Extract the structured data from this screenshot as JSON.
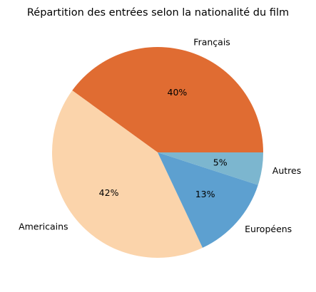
{
  "chart_data": {
    "type": "pie",
    "title": "Répartition des entrées selon la nationalité du film",
    "categories": [
      "Français",
      "Americains",
      "Européens",
      "Autres"
    ],
    "values": [
      40,
      42,
      13,
      5
    ],
    "percent_labels": [
      "40%",
      "42%",
      "13%",
      "5%"
    ],
    "colors": [
      "#e06c32",
      "#fbd4ab",
      "#5da0d0",
      "#7cb6cf"
    ],
    "start_angle_deg": 0,
    "direction": "counterclockwise",
    "legend": "none"
  }
}
